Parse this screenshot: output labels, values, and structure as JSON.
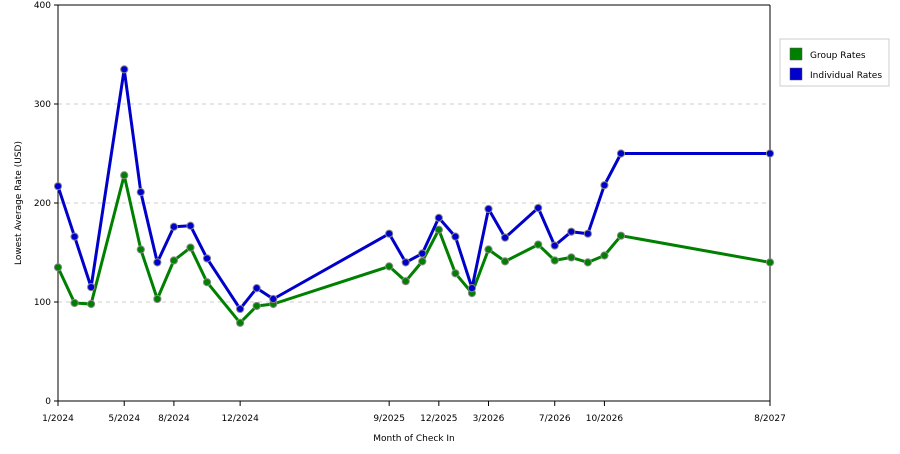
{
  "chart_data": {
    "type": "line",
    "xlabel": "Month of Check In",
    "ylabel": "Lowest Average Rate (USD)",
    "ylim": [
      0,
      400
    ],
    "yticks": [
      0,
      100,
      200,
      300,
      400
    ],
    "grid": "horizontal dashed",
    "legend_position": "right",
    "x": [
      "1/2024",
      "2/2024",
      "3/2024",
      "4/2024",
      "5/2024",
      "6/2024",
      "7/2024",
      "8/2024",
      "9/2024",
      "10/2024",
      "11/2024",
      "12/2024",
      "1/2025",
      "2/2025",
      "3/2025",
      "4/2025",
      "5/2025",
      "6/2025",
      "7/2025",
      "8/2025",
      "9/2025",
      "10/2025",
      "11/2025",
      "12/2025",
      "1/2026",
      "2/2026",
      "3/2026",
      "4/2026",
      "5/2026",
      "6/2026",
      "7/2026",
      "8/2026",
      "9/2026",
      "10/2026",
      "11/2026",
      "12/2026",
      "1/2027",
      "2/2027",
      "3/2027",
      "4/2027",
      "5/2027",
      "6/2027",
      "7/2027",
      "8/2027"
    ],
    "xtick_labels": [
      {
        "x": "1/2024",
        "label": "1/2024"
      },
      {
        "x": "5/2024",
        "label": "5/2024"
      },
      {
        "x": "8/2024",
        "label": "8/2024"
      },
      {
        "x": "12/2024",
        "label": "12/2024"
      },
      {
        "x": "9/2025",
        "label": "9/2025"
      },
      {
        "x": "12/2025",
        "label": "12/2025"
      },
      {
        "x": "3/2026",
        "label": "3/2026"
      },
      {
        "x": "7/2026",
        "label": "7/2026"
      },
      {
        "x": "10/2026",
        "label": "10/2026"
      },
      {
        "x": "8/2027",
        "label": "8/2027"
      }
    ],
    "series": [
      {
        "name": "Group Rates",
        "color": "#008000",
        "points": [
          {
            "x": "1/2024",
            "y": 135
          },
          {
            "x": "2/2024",
            "y": 99
          },
          {
            "x": "3/2024",
            "y": 98
          },
          {
            "x": "5/2024",
            "y": 228
          },
          {
            "x": "6/2024",
            "y": 153
          },
          {
            "x": "7/2024",
            "y": 103
          },
          {
            "x": "8/2024",
            "y": 142
          },
          {
            "x": "9/2024",
            "y": 155
          },
          {
            "x": "10/2024",
            "y": 120
          },
          {
            "x": "12/2024",
            "y": 79
          },
          {
            "x": "1/2025",
            "y": 96
          },
          {
            "x": "2/2025",
            "y": 98
          },
          {
            "x": "9/2025",
            "y": 136
          },
          {
            "x": "10/2025",
            "y": 121
          },
          {
            "x": "11/2025",
            "y": 141
          },
          {
            "x": "12/2025",
            "y": 173
          },
          {
            "x": "1/2026",
            "y": 129
          },
          {
            "x": "2/2026",
            "y": 109
          },
          {
            "x": "3/2026",
            "y": 153
          },
          {
            "x": "4/2026",
            "y": 141
          },
          {
            "x": "6/2026",
            "y": 158
          },
          {
            "x": "7/2026",
            "y": 142
          },
          {
            "x": "8/2026",
            "y": 145
          },
          {
            "x": "9/2026",
            "y": 140
          },
          {
            "x": "10/2026",
            "y": 147
          },
          {
            "x": "11/2026",
            "y": 167
          },
          {
            "x": "8/2027",
            "y": 140
          }
        ]
      },
      {
        "name": "Individual Rates",
        "color": "#0000cc",
        "points": [
          {
            "x": "1/2024",
            "y": 217
          },
          {
            "x": "2/2024",
            "y": 166
          },
          {
            "x": "3/2024",
            "y": 115
          },
          {
            "x": "5/2024",
            "y": 335
          },
          {
            "x": "6/2024",
            "y": 211
          },
          {
            "x": "7/2024",
            "y": 140
          },
          {
            "x": "8/2024",
            "y": 176
          },
          {
            "x": "9/2024",
            "y": 177
          },
          {
            "x": "10/2024",
            "y": 144
          },
          {
            "x": "12/2024",
            "y": 93
          },
          {
            "x": "1/2025",
            "y": 114
          },
          {
            "x": "2/2025",
            "y": 103
          },
          {
            "x": "9/2025",
            "y": 169
          },
          {
            "x": "10/2025",
            "y": 140
          },
          {
            "x": "11/2025",
            "y": 149
          },
          {
            "x": "12/2025",
            "y": 185
          },
          {
            "x": "1/2026",
            "y": 166
          },
          {
            "x": "2/2026",
            "y": 114
          },
          {
            "x": "3/2026",
            "y": 194
          },
          {
            "x": "4/2026",
            "y": 165
          },
          {
            "x": "6/2026",
            "y": 195
          },
          {
            "x": "7/2026",
            "y": 157
          },
          {
            "x": "8/2026",
            "y": 171
          },
          {
            "x": "9/2026",
            "y": 169
          },
          {
            "x": "10/2026",
            "y": 218
          },
          {
            "x": "11/2026",
            "y": 250
          },
          {
            "x": "8/2027",
            "y": 250
          }
        ]
      }
    ]
  }
}
